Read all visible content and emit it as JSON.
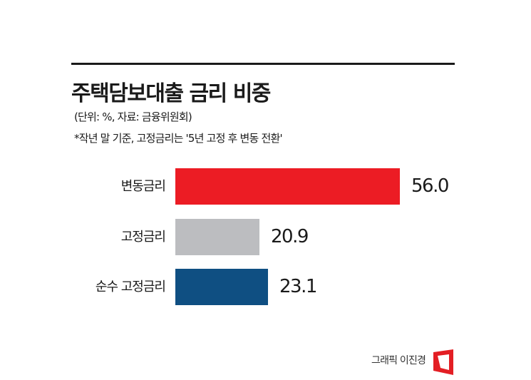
{
  "header": {
    "title": "주택담보대출 금리 비중",
    "unit_source": "(단위: %, 자료: 금융위원회)",
    "note": "*작년 말 기준, 고정금리는 '5년 고정 후 변동 전환'"
  },
  "footer": {
    "credit": "그래픽 이진경",
    "logo_color": "#e31e24"
  },
  "chart_data": {
    "type": "bar",
    "orientation": "horizontal",
    "title": "주택담보대출 금리 비중",
    "subtitle": "(단위: %, 자료: 금융위원회)",
    "annotation": "*작년 말 기준, 고정금리는 '5년 고정 후 변동 전환'",
    "categories": [
      "변동금리",
      "고정금리",
      "순수 고정금리"
    ],
    "values": [
      56.0,
      20.9,
      23.1
    ],
    "value_labels": [
      "56.0",
      "20.9",
      "23.1"
    ],
    "colors": [
      "#ec1c24",
      "#bcbdc0",
      "#0f4f82"
    ],
    "xlabel": "",
    "ylabel": "",
    "grid": false,
    "legend": "none"
  }
}
